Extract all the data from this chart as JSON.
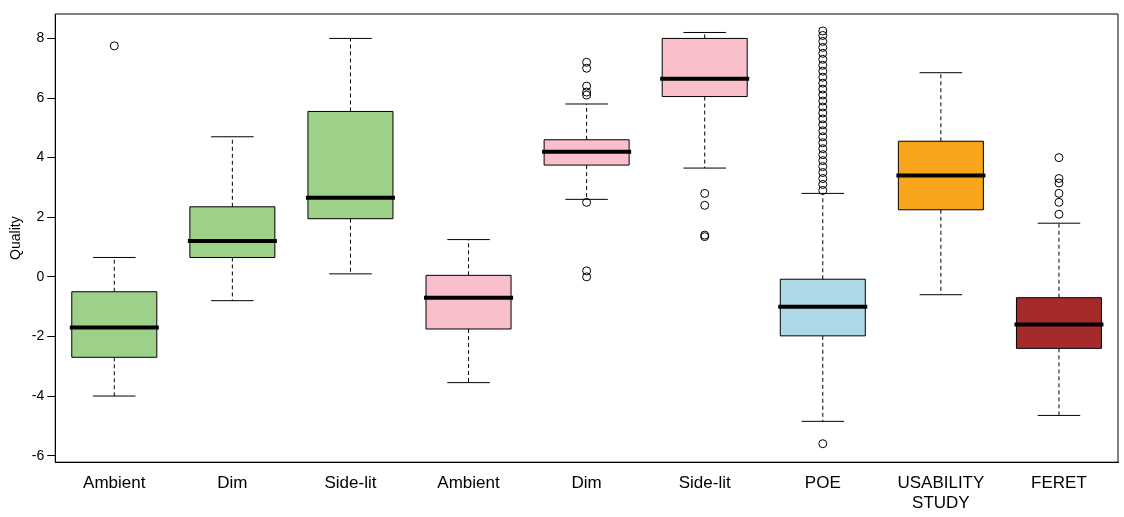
{
  "chart_data": {
    "type": "box",
    "ylabel": "Quality",
    "categories": [
      "Ambient",
      "Dim",
      "Side-lit",
      "Ambient",
      "Dim",
      "Side-lit",
      "POE",
      "USABILITY STUDY",
      "FERET"
    ],
    "colors": [
      "#9dd18a",
      "#9dd18a",
      "#9dd18a",
      "#f9bfcb",
      "#f9bfcb",
      "#f9bfcb",
      "#add8e6",
      "#f9a51c",
      "#a52a2a"
    ],
    "boxes": [
      {
        "low": -4,
        "q1": -2.7,
        "median": -1.7,
        "q3": -0.5,
        "high": 0.65,
        "outliers": [
          7.75
        ]
      },
      {
        "low": -0.8,
        "q1": 0.65,
        "median": 1.2,
        "q3": 2.35,
        "high": 4.7
      },
      {
        "low": 0.1,
        "q1": 1.95,
        "median": 2.65,
        "q3": 5.55,
        "high": 8.0
      },
      {
        "low": -3.55,
        "q1": -1.75,
        "median": -0.7,
        "q3": 0.05,
        "high": 1.25
      },
      {
        "low": 2.6,
        "q1": 3.75,
        "median": 4.2,
        "q3": 4.6,
        "high": 5.8,
        "outliers": [
          7.2,
          7.0,
          6.4,
          6.2,
          6.1,
          2.5,
          0.2,
          0.0
        ]
      },
      {
        "low": 3.65,
        "q1": 6.05,
        "median": 6.65,
        "q3": 8.0,
        "high": 8.2,
        "outliers": [
          2.8,
          2.4,
          1.4,
          1.35
        ]
      },
      {
        "low": -4.85,
        "q1": -1.98,
        "median": -1.0,
        "q3": -0.08,
        "high": 2.8,
        "outliers": [
          2.9,
          3.1,
          3.3,
          3.5,
          3.7,
          3.9,
          4.1,
          4.3,
          4.5,
          4.7,
          4.9,
          5.1,
          5.3,
          5.5,
          5.7,
          5.9,
          6.1,
          6.3,
          6.5,
          6.7,
          6.9,
          7.1,
          7.3,
          7.5,
          7.7,
          7.9,
          8.1,
          8.25,
          -5.6
        ]
      },
      {
        "low": -0.6,
        "q1": 2.25,
        "median": 3.4,
        "q3": 4.55,
        "high": 6.85
      },
      {
        "low": -4.65,
        "q1": -2.4,
        "median": -1.6,
        "q3": -0.7,
        "high": 1.8,
        "outliers": [
          4.0,
          3.3,
          3.15,
          2.8,
          2.5,
          2.1
        ]
      }
    ],
    "ylim": [
      -6.22,
      8.82
    ],
    "yticks": [
      -6,
      -4,
      -2,
      0,
      2,
      4,
      6,
      8
    ],
    "grid": false,
    "legend": false
  }
}
